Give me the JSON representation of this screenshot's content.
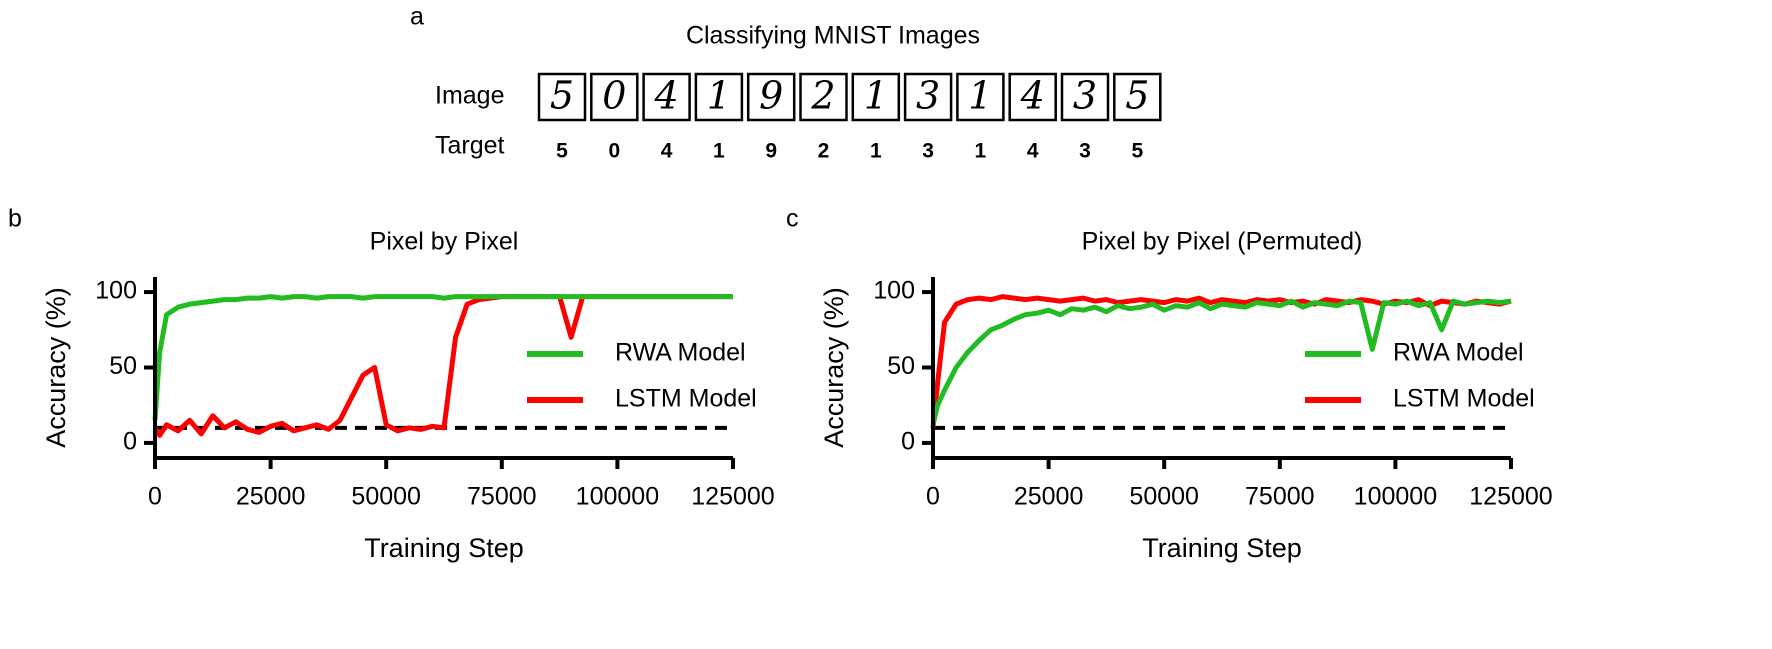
{
  "panel_a": {
    "label": "a",
    "title": "Classifying MNIST Images",
    "row_labels": [
      "Image",
      "Target"
    ],
    "targets": [
      5,
      0,
      4,
      1,
      9,
      2,
      1,
      3,
      1,
      4,
      3,
      5
    ]
  },
  "chart_data": [
    {
      "label": "b",
      "type": "line",
      "title": "Pixel by Pixel",
      "xlabel": "Training  Step",
      "ylabel": "Accuracy (%)",
      "x": [
        0,
        1000,
        2500,
        5000,
        7500,
        10000,
        12500,
        15000,
        17500,
        20000,
        22500,
        25000,
        27500,
        30000,
        32500,
        35000,
        37500,
        40000,
        42500,
        45000,
        47500,
        50000,
        52500,
        55000,
        57500,
        60000,
        62500,
        65000,
        67500,
        70000,
        72500,
        75000,
        77500,
        80000,
        82500,
        85000,
        87500,
        90000,
        92500,
        95000,
        97500,
        100000,
        102500,
        105000,
        107500,
        110000,
        112500,
        115000,
        117500,
        120000,
        122500,
        125000
      ],
      "series": [
        {
          "name": "RWA Model",
          "color": "#22bb22",
          "values": [
            15,
            60,
            85,
            90,
            92,
            93,
            94,
            95,
            95,
            96,
            96,
            97,
            96,
            97,
            97,
            96,
            97,
            97,
            97,
            96,
            97,
            97,
            97,
            97,
            97,
            97,
            96,
            97,
            97,
            97,
            97,
            97,
            97,
            97,
            97,
            97,
            97,
            97,
            97,
            97,
            97,
            97,
            97,
            97,
            97,
            97,
            97,
            97,
            97,
            97,
            97,
            97
          ]
        },
        {
          "name": "LSTM Model",
          "color": "#ff0000",
          "values": [
            10,
            5,
            12,
            8,
            15,
            6,
            18,
            10,
            14,
            9,
            7,
            11,
            13,
            8,
            10,
            12,
            9,
            15,
            30,
            45,
            50,
            12,
            8,
            10,
            9,
            11,
            10,
            70,
            92,
            95,
            96,
            97,
            97,
            97,
            97,
            97,
            97,
            70,
            97,
            97,
            97,
            97,
            97,
            97,
            97,
            97,
            97,
            97,
            97,
            97,
            97,
            97
          ]
        }
      ],
      "xlim": [
        0,
        125000
      ],
      "ylim": [
        -10,
        110
      ],
      "xticks": [
        0,
        25000,
        50000,
        75000,
        100000,
        125000
      ],
      "yticks": [
        0,
        50,
        100
      ],
      "reference_line": {
        "value": 10,
        "style": "dashed",
        "color": "#000000"
      },
      "legend": "center right"
    },
    {
      "label": "c",
      "type": "line",
      "title": "Pixel by Pixel (Permuted)",
      "xlabel": "Training  Step",
      "ylabel": "Accuracy (%)",
      "x": [
        0,
        1000,
        2500,
        5000,
        7500,
        10000,
        12500,
        15000,
        17500,
        20000,
        22500,
        25000,
        27500,
        30000,
        32500,
        35000,
        37500,
        40000,
        42500,
        45000,
        47500,
        50000,
        52500,
        55000,
        57500,
        60000,
        62500,
        65000,
        67500,
        70000,
        72500,
        75000,
        77500,
        80000,
        82500,
        85000,
        87500,
        90000,
        92500,
        95000,
        97500,
        100000,
        102500,
        105000,
        107500,
        110000,
        112500,
        115000,
        117500,
        120000,
        122500,
        125000
      ],
      "series": [
        {
          "name": "RWA Model",
          "color": "#22bb22",
          "values": [
            12,
            25,
            35,
            50,
            60,
            68,
            75,
            78,
            82,
            85,
            86,
            88,
            85,
            89,
            88,
            90,
            87,
            91,
            89,
            90,
            92,
            88,
            91,
            90,
            93,
            89,
            92,
            91,
            90,
            93,
            92,
            91,
            94,
            90,
            93,
            92,
            91,
            94,
            93,
            62,
            93,
            92,
            94,
            91,
            93,
            75,
            94,
            92,
            93,
            94,
            93,
            94
          ]
        },
        {
          "name": "LSTM Model",
          "color": "#ff0000",
          "values": [
            10,
            40,
            80,
            92,
            95,
            96,
            95,
            97,
            96,
            95,
            96,
            95,
            94,
            95,
            96,
            94,
            95,
            93,
            94,
            95,
            94,
            93,
            95,
            94,
            96,
            93,
            95,
            94,
            93,
            95,
            94,
            95,
            93,
            94,
            92,
            95,
            94,
            93,
            95,
            94,
            92,
            94,
            93,
            95,
            91,
            94,
            93,
            92,
            94,
            93,
            92,
            94
          ]
        }
      ],
      "xlim": [
        0,
        125000
      ],
      "ylim": [
        -10,
        110
      ],
      "xticks": [
        0,
        25000,
        50000,
        75000,
        100000,
        125000
      ],
      "yticks": [
        0,
        50,
        100
      ],
      "reference_line": {
        "value": 10,
        "style": "dashed",
        "color": "#000000"
      },
      "legend": "center right"
    }
  ]
}
